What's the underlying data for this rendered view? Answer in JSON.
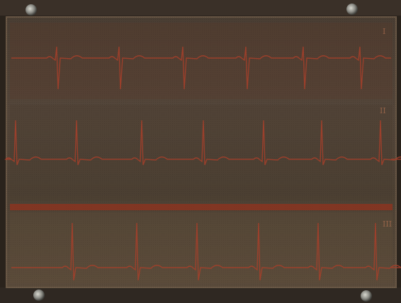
{
  "leads": [
    {
      "label": "I"
    },
    {
      "label": "II"
    },
    {
      "label": "III"
    }
  ]
}
